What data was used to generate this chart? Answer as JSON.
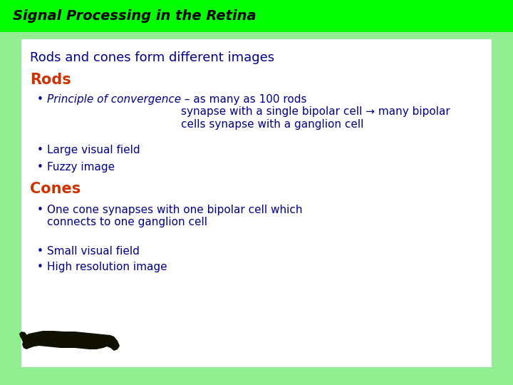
{
  "title": "Signal Processing in the Retina",
  "title_bg": "#00FF00",
  "title_color": "#000000",
  "title_fontsize": 14,
  "background_color": "#90EE90",
  "content_bg": "#FFFFFF",
  "heading1": "Rods and cones form different images",
  "heading1_color": "#00008B",
  "heading1_fontsize": 13,
  "heading2_rods": "Rods",
  "heading2_rods_color": "#CC3300",
  "heading2_fontsize": 15,
  "rods_bullet1_italic": "Principle of convergence",
  "rods_bullet1_rest": " – as many as 100 rods\nsynapse with a single bipolar cell → many bipolar\ncells synapse with a ganglion cell",
  "rods_bullet2": "Large visual field",
  "rods_bullet3": "Fuzzy image",
  "heading2_cones": "Cones",
  "heading2_cones_color": "#CC3300",
  "cones_bullet1": "One cone synapses with one bipolar cell which\nconnects to one ganglion cell",
  "cones_bullet2": "Small visual field",
  "cones_bullet3": "High resolution image",
  "bullets_color": "#00008B",
  "bullets_fontsize": 11
}
